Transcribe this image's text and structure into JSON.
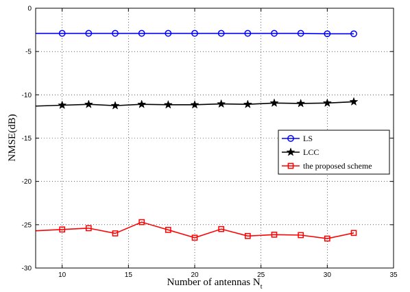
{
  "chart_data": {
    "type": "line",
    "title": "",
    "xlabel": "Number of antennas N",
    "xlabel_subscript": "t",
    "ylabel": "NMSE(dB)",
    "xlim": [
      8,
      35
    ],
    "ylim": [
      -30,
      0
    ],
    "xticks": [
      10,
      15,
      20,
      25,
      30,
      35
    ],
    "yticks": [
      0,
      -5,
      -10,
      -15,
      -20,
      -25,
      -30
    ],
    "grid": true,
    "legend_position": "right",
    "series": [
      {
        "name": "LS",
        "color": "#0000ff",
        "marker": "circle",
        "x": [
          8,
          10,
          12,
          14,
          16,
          18,
          20,
          22,
          24,
          26,
          28,
          30,
          32
        ],
        "y": [
          -2.9,
          -2.9,
          -2.9,
          -2.9,
          -2.9,
          -2.9,
          -2.9,
          -2.9,
          -2.9,
          -2.9,
          -2.9,
          -2.95,
          -2.95
        ],
        "marker_x": [
          10,
          12,
          14,
          16,
          18,
          20,
          22,
          24,
          26,
          28,
          30,
          32
        ]
      },
      {
        "name": "LCC",
        "color": "#000000",
        "marker": "star",
        "x": [
          8,
          10,
          12,
          14,
          16,
          18,
          20,
          22,
          24,
          26,
          28,
          30,
          32
        ],
        "y": [
          -11.3,
          -11.2,
          -11.1,
          -11.25,
          -11.1,
          -11.15,
          -11.15,
          -11.05,
          -11.1,
          -10.95,
          -11.0,
          -10.95,
          -10.8
        ],
        "marker_x": [
          10,
          12,
          14,
          16,
          18,
          20,
          22,
          24,
          26,
          28,
          30,
          32
        ]
      },
      {
        "name": "the proposed  scheme",
        "color": "#ff0000",
        "marker": "square",
        "x": [
          8,
          10,
          12,
          14,
          16,
          18,
          20,
          22,
          24,
          26,
          28,
          30,
          32
        ],
        "y": [
          -25.7,
          -25.55,
          -25.4,
          -26.0,
          -24.7,
          -25.6,
          -26.5,
          -25.5,
          -26.3,
          -26.15,
          -26.2,
          -26.6,
          -25.95
        ],
        "marker_x": [
          10,
          12,
          14,
          16,
          18,
          20,
          22,
          24,
          26,
          28,
          30,
          32
        ]
      }
    ]
  }
}
